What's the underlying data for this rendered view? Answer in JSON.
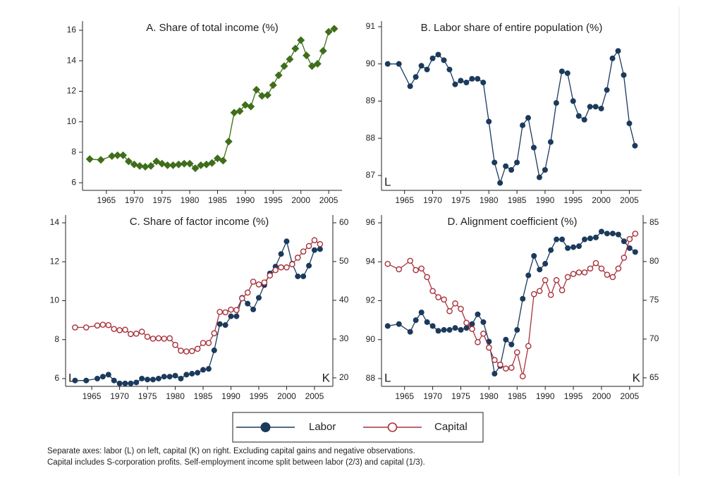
{
  "chart_data": [
    {
      "type": "line",
      "title": "A. Share of total income (%)",
      "marker": "diamond",
      "color": "#3f6e1b",
      "x": [
        1962,
        1964,
        1966,
        1967,
        1968,
        1969,
        1970,
        1971,
        1972,
        1973,
        1974,
        1975,
        1976,
        1977,
        1978,
        1979,
        1980,
        1981,
        1982,
        1983,
        1984,
        1985,
        1986,
        1987,
        1988,
        1989,
        1990,
        1991,
        1992,
        1993,
        1994,
        1995,
        1996,
        1997,
        1998,
        1999,
        2000,
        2001,
        2002,
        2003,
        2004,
        2005,
        2006
      ],
      "values": [
        7.55,
        7.5,
        7.75,
        7.8,
        7.8,
        7.4,
        7.2,
        7.1,
        7.05,
        7.1,
        7.4,
        7.25,
        7.15,
        7.15,
        7.2,
        7.25,
        7.25,
        6.95,
        7.15,
        7.2,
        7.3,
        7.6,
        7.45,
        8.7,
        10.6,
        10.7,
        11.1,
        11.0,
        12.1,
        11.7,
        11.75,
        12.4,
        13.05,
        13.65,
        14.1,
        14.8,
        15.35,
        14.35,
        13.65,
        13.8,
        14.65,
        15.9,
        16.1
      ],
      "xlim": [
        1960.7,
        2007.4
      ],
      "xticks": [
        1965,
        1970,
        1975,
        1980,
        1985,
        1990,
        1995,
        2000,
        2005
      ],
      "ylim": [
        5.5,
        16.6
      ],
      "yticks": [
        6,
        8,
        10,
        12,
        14,
        16
      ]
    },
    {
      "type": "line",
      "title": "B. Labor share of entire population (%)",
      "marker": "circle",
      "color": "#1b3a5c",
      "left_label": "L",
      "x": [
        1962,
        1964,
        1966,
        1967,
        1968,
        1969,
        1970,
        1971,
        1972,
        1973,
        1974,
        1975,
        1976,
        1977,
        1978,
        1979,
        1980,
        1981,
        1982,
        1983,
        1984,
        1985,
        1986,
        1987,
        1988,
        1989,
        1990,
        1991,
        1992,
        1993,
        1994,
        1995,
        1996,
        1997,
        1998,
        1999,
        2000,
        2001,
        2002,
        2003,
        2004,
        2005,
        2006
      ],
      "values": [
        90.0,
        90.0,
        89.4,
        89.65,
        89.95,
        89.85,
        90.15,
        90.25,
        90.1,
        89.85,
        89.45,
        89.55,
        89.5,
        89.6,
        89.6,
        89.5,
        88.45,
        87.35,
        86.8,
        87.25,
        87.15,
        87.35,
        88.35,
        88.55,
        87.75,
        86.95,
        87.15,
        87.9,
        88.95,
        89.8,
        89.75,
        89.0,
        88.6,
        88.5,
        88.85,
        88.85,
        88.8,
        89.3,
        90.15,
        90.35,
        89.7,
        88.4,
        87.8
      ],
      "xlim": [
        1960.9,
        2007.2
      ],
      "xticks": [
        1965,
        1970,
        1975,
        1980,
        1985,
        1990,
        1995,
        2000,
        2005
      ],
      "ylim": [
        86.6,
        91.15
      ],
      "yticks": [
        87,
        88,
        89,
        90,
        91
      ]
    },
    {
      "type": "line",
      "title": "C. Share of factor income (%)",
      "left_label": "L",
      "right_label": "K",
      "x": [
        1962,
        1964,
        1966,
        1967,
        1968,
        1969,
        1970,
        1971,
        1972,
        1973,
        1974,
        1975,
        1976,
        1977,
        1978,
        1979,
        1980,
        1981,
        1982,
        1983,
        1984,
        1985,
        1986,
        1987,
        1988,
        1989,
        1990,
        1991,
        1992,
        1993,
        1994,
        1995,
        1996,
        1997,
        1998,
        1999,
        2000,
        2001,
        2002,
        2003,
        2004,
        2005,
        2006
      ],
      "series": [
        {
          "name": "Labor",
          "color": "#1b3a5c",
          "marker": "circle",
          "values": [
            5.9,
            5.9,
            6.0,
            6.1,
            6.2,
            5.9,
            5.75,
            5.75,
            5.75,
            5.8,
            6.0,
            5.95,
            5.95,
            6.0,
            6.1,
            6.1,
            6.15,
            6.0,
            6.2,
            6.25,
            6.3,
            6.45,
            6.5,
            7.45,
            8.8,
            8.75,
            9.2,
            9.2,
            10.15,
            9.85,
            9.55,
            10.15,
            10.8,
            11.4,
            11.75,
            12.4,
            13.05,
            11.9,
            11.25,
            11.25,
            11.8,
            12.6,
            12.65
          ]
        },
        {
          "name": "Capital",
          "color": "#a8323c",
          "marker": "circle-open",
          "axis": "y2",
          "values": [
            33,
            33,
            33.5,
            33.7,
            33.6,
            32.6,
            32.3,
            32.4,
            31.3,
            31.4,
            31.9,
            30.6,
            30.1,
            30.2,
            30.1,
            30.2,
            28.5,
            27.0,
            26.8,
            26.9,
            27.5,
            29.0,
            29.0,
            31.5,
            37.0,
            36.9,
            37.6,
            37.5,
            40.5,
            42,
            44.8,
            44.1,
            44.6,
            46.4,
            47.8,
            48.5,
            48.5,
            49.3,
            51,
            52.6,
            54,
            55.5,
            54.5
          ]
        }
      ],
      "xlim": [
        1960.3,
        2008.3
      ],
      "xticks": [
        1965,
        1970,
        1975,
        1980,
        1985,
        1990,
        1995,
        2000,
        2005
      ],
      "ylim": [
        5.6,
        14.4
      ],
      "yticks": [
        6,
        8,
        10,
        12,
        14
      ],
      "y2lim": [
        17.8,
        62
      ],
      "y2ticks": [
        20,
        30,
        40,
        50,
        60
      ]
    },
    {
      "type": "line",
      "title": "D. Alignment coefficient (%)",
      "left_label": "L",
      "right_label": "K",
      "x": [
        1962,
        1964,
        1966,
        1967,
        1968,
        1969,
        1970,
        1971,
        1972,
        1973,
        1974,
        1975,
        1976,
        1977,
        1978,
        1979,
        1980,
        1981,
        1982,
        1983,
        1984,
        1985,
        1986,
        1987,
        1988,
        1989,
        1990,
        1991,
        1992,
        1993,
        1994,
        1995,
        1996,
        1997,
        1998,
        1999,
        2000,
        2001,
        2002,
        2003,
        2004,
        2005,
        2006
      ],
      "series": [
        {
          "name": "Labor",
          "color": "#1b3a5c",
          "marker": "circle",
          "values": [
            90.7,
            90.8,
            90.4,
            91.0,
            91.4,
            90.9,
            90.7,
            90.45,
            90.5,
            90.5,
            90.6,
            90.5,
            90.6,
            90.8,
            91.3,
            90.9,
            89.9,
            88.25,
            88.65,
            90.0,
            89.75,
            90.5,
            92.1,
            93.3,
            94.3,
            93.6,
            93.9,
            94.6,
            95.15,
            95.15,
            94.7,
            94.75,
            94.8,
            95.15,
            95.2,
            95.25,
            95.55,
            95.45,
            95.45,
            95.4,
            95.05,
            94.7,
            94.5
          ]
        },
        {
          "name": "Capital",
          "color": "#a8323c",
          "marker": "circle-open",
          "axis": "y2",
          "values": [
            79.7,
            79.0,
            80.1,
            78.9,
            79.1,
            78.0,
            76.2,
            75.4,
            75.1,
            73.6,
            74.6,
            73.9,
            72.1,
            71.3,
            69.6,
            70.7,
            68.9,
            67.3,
            66.7,
            66.2,
            66.3,
            68.3,
            65.2,
            69.1,
            75.8,
            76.2,
            77.6,
            75.7,
            77.6,
            76.3,
            78.0,
            78.4,
            78.6,
            78.6,
            79.1,
            79.8,
            79.1,
            78.3,
            78.0,
            79.1,
            80.5,
            82.9,
            83.6
          ]
        }
      ],
      "xlim": [
        1960.9,
        2007.4
      ],
      "xticks": [
        1965,
        1970,
        1975,
        1980,
        1985,
        1990,
        1995,
        2000,
        2005
      ],
      "ylim": [
        87.6,
        96.4
      ],
      "yticks": [
        88,
        90,
        92,
        94,
        96
      ],
      "y2lim": [
        63.9,
        86
      ],
      "y2ticks": [
        65,
        70,
        75,
        80,
        85
      ]
    }
  ],
  "notes": [
    "Separate axes: labor (L) on left, capital (K) on right. Excluding capital gains and negative observations.",
    "Capital includes S-corporation profits. Self-employment income split between labor (2/3) and capital (1/3)."
  ]
}
